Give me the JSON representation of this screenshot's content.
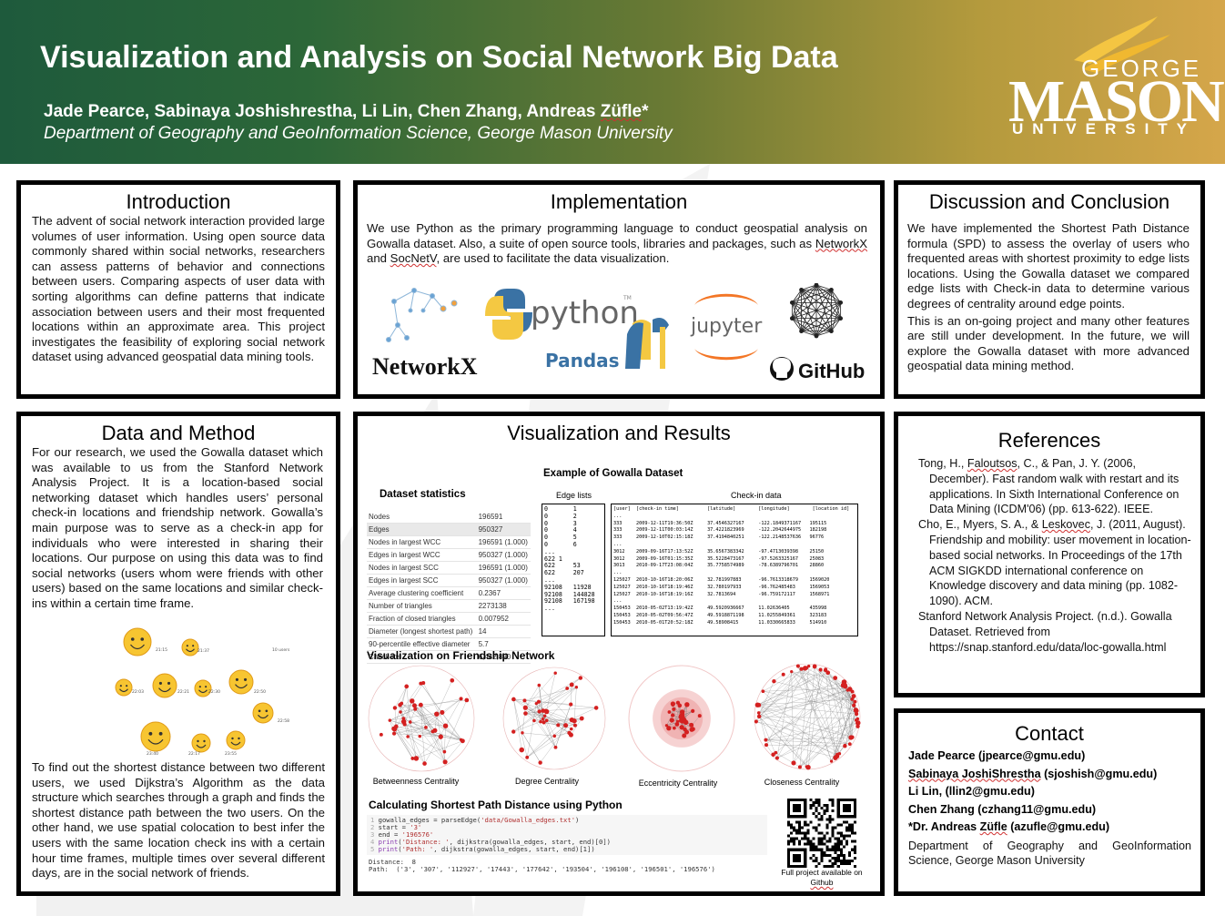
{
  "header": {
    "title": "Visualization and Analysis on Social Network Big Data",
    "authors_main": "Jade Pearce, Sabinaya Joshishrestha, Li Lin, Chen Zhang, Andreas ",
    "authors_squig": "Züfle",
    "authors_star": "*",
    "affiliation": "Department of Geography and GeoInformation Science, George Mason University",
    "logo": {
      "george": "GEORGE",
      "mason": "MASON",
      "university": "UNIVERSITY"
    }
  },
  "intro": {
    "title": "Introduction",
    "text": "The advent of social network interaction provided large volumes of user information. Using open source data commonly shared within social networks, researchers can assess patterns of behavior and connections between users. Comparing aspects of user data  with sorting algorithms can define patterns that indicate association between users and their most frequented locations within an approximate area. This project investigates the feasibility of exploring social network dataset using advanced geospatial data mining tools."
  },
  "implementation": {
    "title": "Implementation",
    "text_a": "We use Python as the primary programming language to conduct geospatial analysis on Gowalla dataset. Also, a suite of open source tools, libraries and packages, such as ",
    "networkx": "NetworkX",
    "text_b": " and ",
    "socnetv": "SocNetV",
    "text_c": ", are used to facilitate the data visualization.",
    "logos": {
      "networkx": "NetworkX",
      "python": "python",
      "tm": "TM",
      "pandas": "Pandas",
      "jupyter": "jupyter",
      "github": "GitHub"
    }
  },
  "discussion": {
    "title": "Discussion and Conclusion",
    "p1": "We have implemented the Shortest Path Distance formula (SPD) to assess the overlay of users who frequented areas with shortest proximity to edge lists locations. Using the Gowalla dataset we compared edge lists with Check-in data to determine various degrees of centrality around edge points.",
    "p2": "This is an on-going project and many other features are still under development. In the future, we will explore the Gowalla dataset with more advanced geospatial data mining method."
  },
  "data_method": {
    "title": "Data and Method",
    "p1": "For our research, we used the Gowalla dataset which was available to us from the Stanford Network Analysis Project. It is a location-based social networking dataset which handles users’ personal check-in locations and friendship network. Gowalla’s main purpose was to serve as a check-in app for individuals who were interested in sharing their locations. Our purpose on using this data was to find social networks (users whom were friends with other users) based on the same locations and similar check-ins within a certain time frame.",
    "p2": "To find out the shortest distance between two different users, we used Dijkstra’s Algorithm as the data structure which searches through a graph and finds the shortest distance path between the two users. On the other hand, we use spatial colocation to best infer the users with the same location check ins with a certain hour time frames, multiple times over several different days, are in the social network of friends.",
    "diagram_labels": [
      "21:15",
      "21:37",
      "10 users",
      "22:03",
      "22:21",
      "22:30",
      "22:50",
      "22:58",
      "23:40",
      "22:17",
      "23:55"
    ]
  },
  "visualization": {
    "title": "Visualization and Results",
    "stats_title": "Dataset statistics",
    "stats": [
      [
        "Nodes",
        "196591"
      ],
      [
        "Edges",
        "950327"
      ],
      [
        "Nodes in largest WCC",
        "196591 (1.000)"
      ],
      [
        "Edges in largest WCC",
        "950327 (1.000)"
      ],
      [
        "Nodes in largest SCC",
        "196591 (1.000)"
      ],
      [
        "Edges in largest SCC",
        "950327 (1.000)"
      ],
      [
        "Average clustering coefficient",
        "0.2367"
      ],
      [
        "Number of triangles",
        "2273138"
      ],
      [
        "Fraction of closed triangles",
        "0.007952"
      ],
      [
        "Diameter (longest shortest path)",
        "14"
      ],
      [
        "90-percentile effective diameter",
        "5.7"
      ],
      [
        "Check-ins",
        "6,442,890"
      ]
    ],
    "example_title": "Example of Gowalla Dataset",
    "edge_label": "Edge lists",
    "checkin_label": "Check-in data",
    "edge_lines": "0       1\n0       2\n0       3\n0       4\n0       5\n0       6\n...\n622 1\n622     53\n622     207\n...\n92108   11928\n92108   144828\n92108   167198\n...",
    "checkin_lines": "[user]  [check-in time]          [latitude]        [longitude]        [location id]\n...\n333     2009-12-11T19:36:50Z     37.4546327167     -122.1849371167   195115\n333     2009-12-11T00:03:14Z     37.4221823969     -122.2042644975   182198\n333     2009-12-10T02:15:18Z     37.4194840251     -122.2148537636   96776\n...\n3012    2009-09-16T17:13:52Z     35.6567383342     -97.4713039398    25150\n3012    2009-09-16T01:15:35Z     35.5228473167     -97.5263325167    25083\n3013    2010-09-17T23:08:04Z     35.7758574989     -78.6389796701    28860\n...\n125027  2010-10-16T18:20:06Z     32.781997883      -96.7613318679    1569020\n125027  2010-10-16T18:19:46Z     32.780197933      -96.762485483     1569053\n125027  2010-10-16T18:19:16Z     32.7813694        -96.759172117     1568971\n...\n150453  2010-05-02T13:19:42Z     49.5920936667     11.02636405       435998\n150453  2010-05-02T09:56:47Z     49.5918871198     11.0255849361     323183\n150453  2010-05-01T20:52:18Z     49.58908415       11.0330665833     514910",
    "friendship_title": "Visualization on Friendship Network",
    "centralities": [
      "Betweenness Centrality",
      "Degree Centrality",
      "Eccentricity Centrality",
      "Closeness Centrality"
    ],
    "spd_title": "Calculating Shortest Path Distance using Python",
    "code": {
      "n1": "1",
      "l1a": "gowalla_edges = parseEdge(",
      "l1s": "'data/Gowalla_edges.txt'",
      "l1b": ")",
      "n2": "2",
      "l2a": "start = ",
      "l2s": "'3'",
      "n3": "3",
      "l3a": "end = ",
      "l3s": "'196576'",
      "n4": "4",
      "l4f": "print",
      "l4a": "(",
      "l4s": "'Distance: '",
      "l4b": ", dijkstra(gowalla_edges, start, end)[0])",
      "n5": "5",
      "l5f": "print",
      "l5a": "(",
      "l5s": "'Path: '",
      "l5b": ", dijkstra(gowalla_edges, start, end)[1])",
      "out1": "Distance:  8",
      "out2": "Path:  ('3', '307', '112927', '17443', '177642', '193504', '196108', '196501', '196576')"
    },
    "qr_caption_a": "Full project available on",
    "qr_caption_b": "Github"
  },
  "references": {
    "title": "References",
    "r1_a": "Tong, H., ",
    "r1_sq": "Faloutsos",
    "r1_b": ", C., & Pan, J. Y. (2006, December). Fast random walk with restart and its applications. In Sixth International Conference on Data Mining (ICDM'06) (pp. 613-622). IEEE.",
    "r2_a": "Cho, E., Myers, S. A., & ",
    "r2_sq": "Leskovec",
    "r2_b": ", J. (2011, August). Friendship and mobility: user movement in location-based social networks. In Proceedings of the 17th ACM SIGKDD international conference on Knowledge discovery and data mining (pp. 1082-1090). ACM.",
    "r3": "Stanford Network Analysis Project. (n.d.). Gowalla Dataset. Retrieved from https://snap.stanford.edu/data/loc-gowalla.html"
  },
  "contact": {
    "title": "Contact",
    "c1": "Jade Pearce (jpearce@gmu.edu)",
    "c2_sq": "Sabinaya JoshiShrestha",
    "c2_b": " (sjoshish@gmu.edu)",
    "c3": "Li Lin, (llin2@gmu.edu)",
    "c4": "Chen Zhang (czhang11@gmu.edu)",
    "c5_a": "*Dr. Andreas ",
    "c5_sq": "Züfle",
    "c5_b": " (azufle@gmu.edu)",
    "dept": "Department of Geography and GeoInformation Science, George Mason University"
  },
  "colors": {
    "header_green": "#1e5a3c",
    "header_gold": "#d5a64a",
    "network_red": "#d42020",
    "python_blue": "#3a72a4",
    "python_yellow": "#f4c842",
    "jupyter_orange": "#f37626"
  }
}
